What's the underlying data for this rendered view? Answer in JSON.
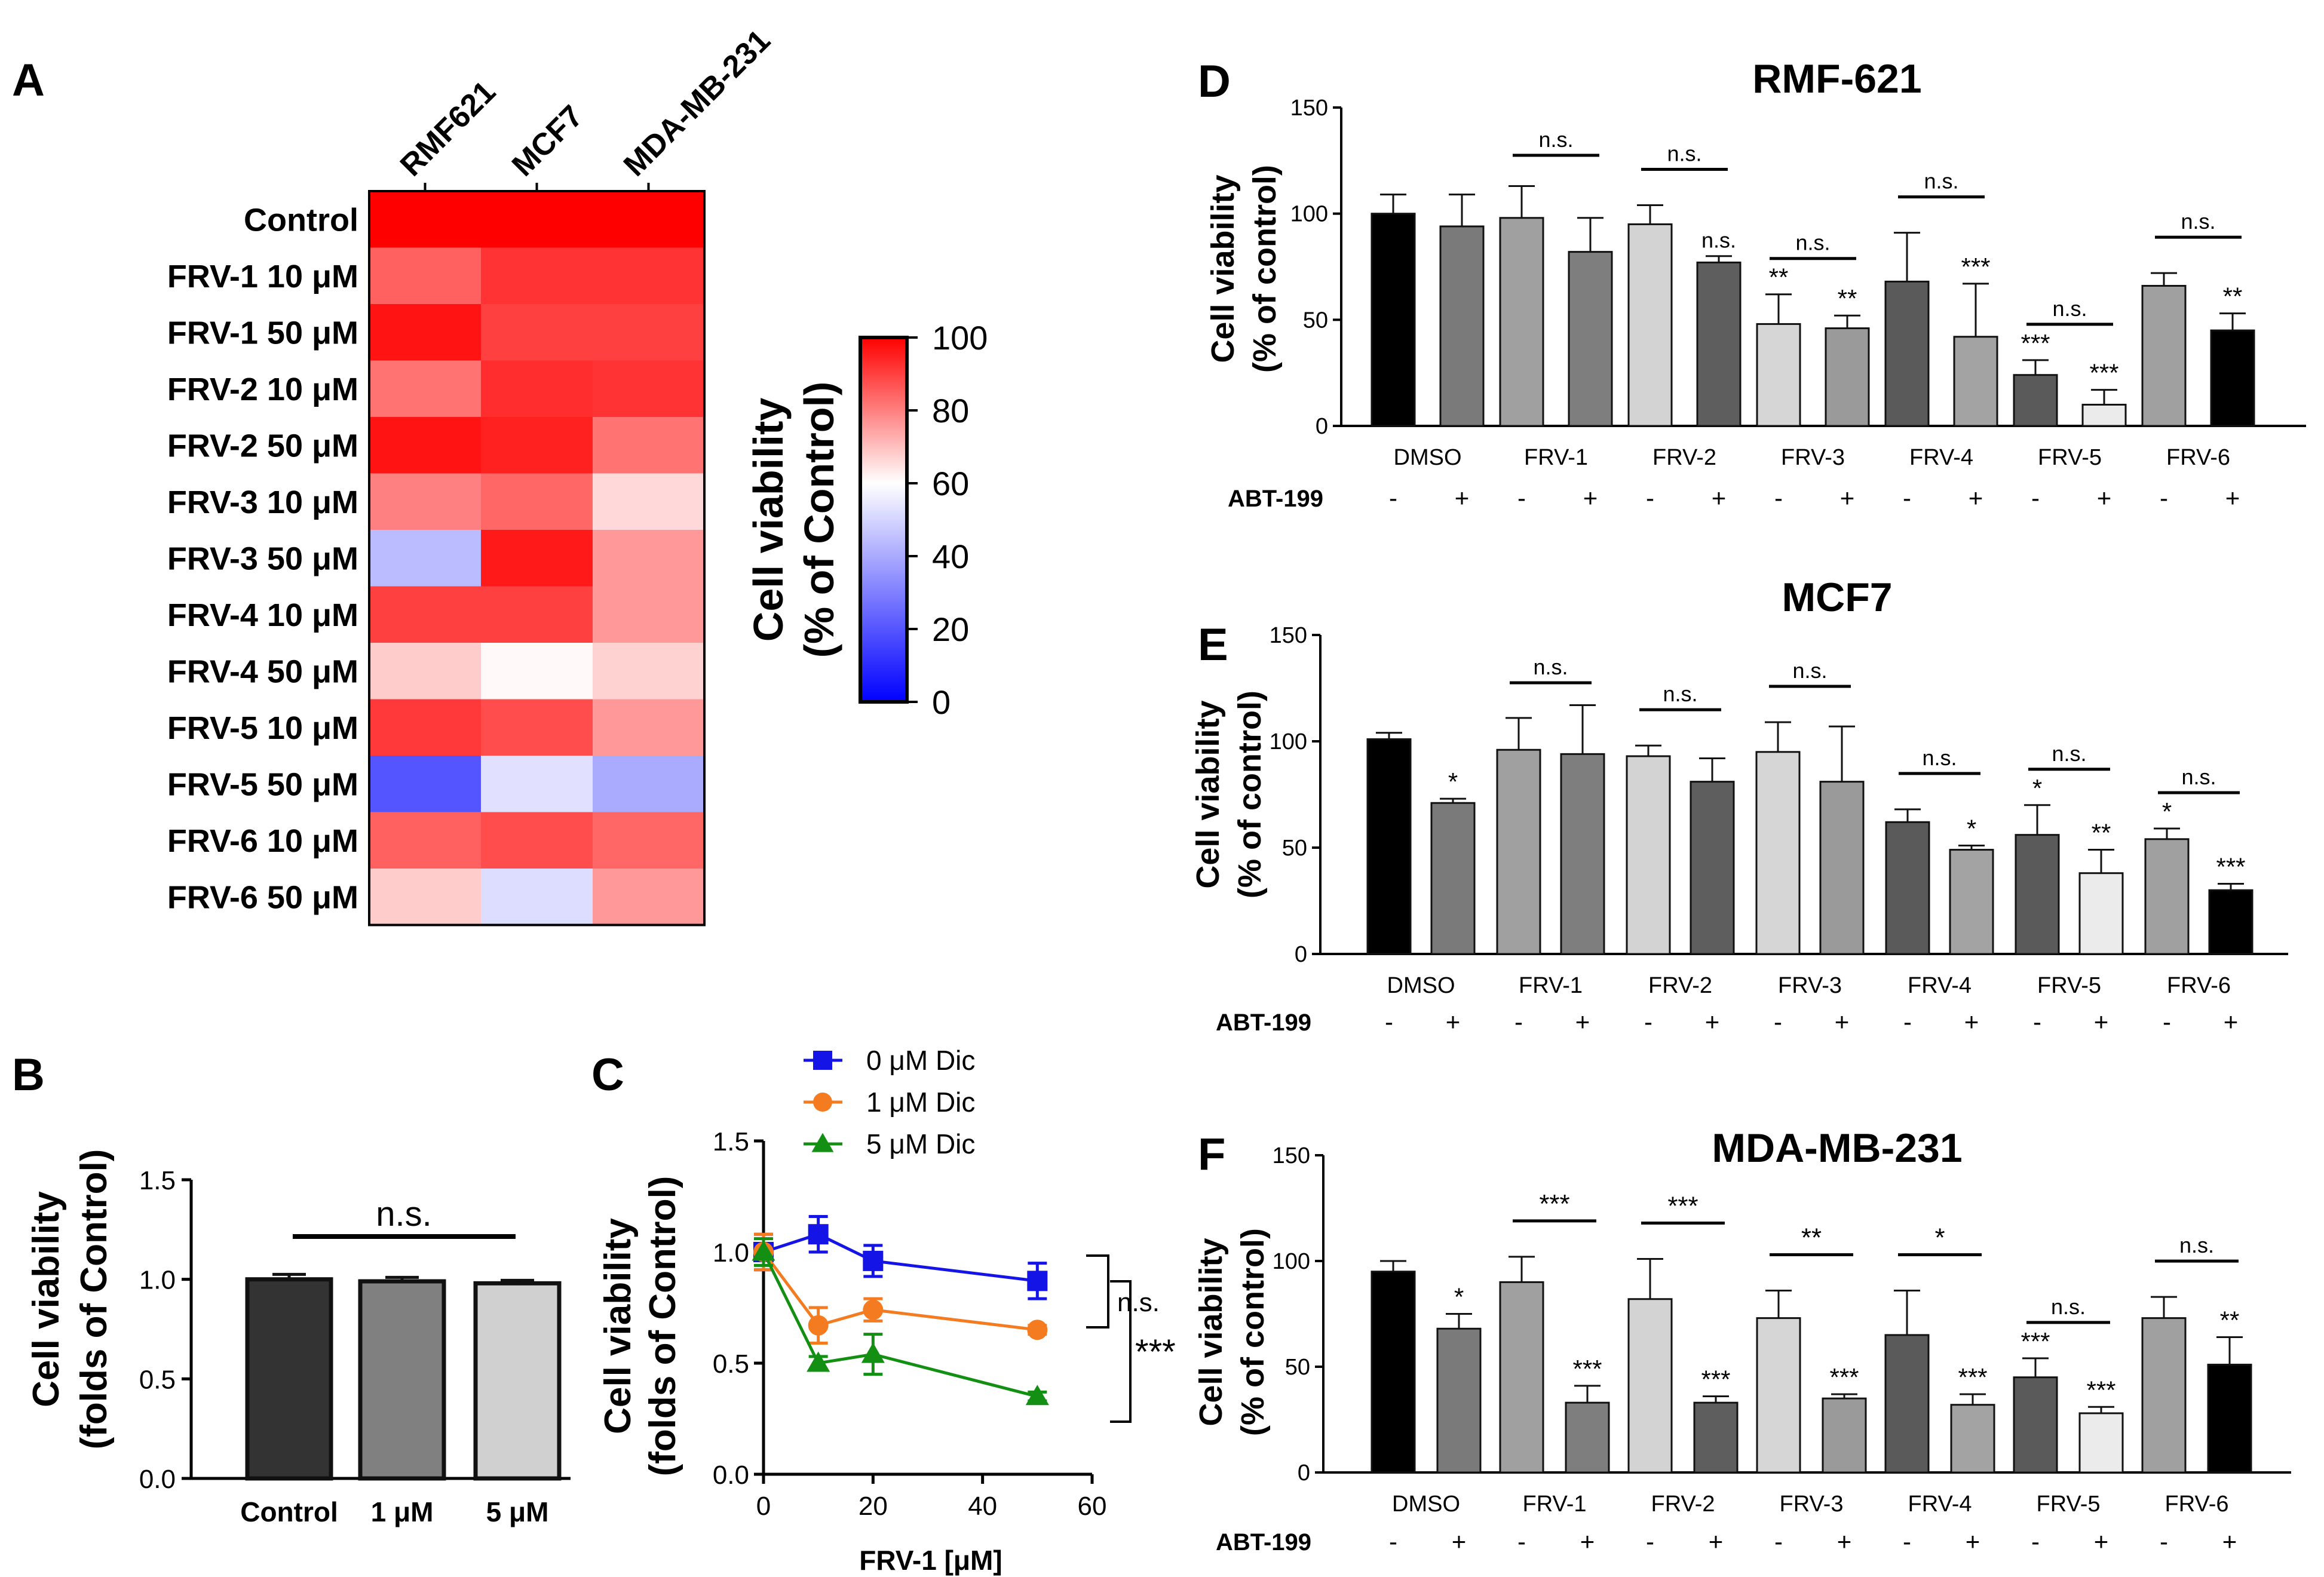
{
  "chart_data": [
    {
      "panel": "A",
      "type": "heatmap",
      "columns": [
        "RMF621",
        "MCF7",
        "MDA-MB-231"
      ],
      "rows": [
        "Control",
        "FRV-1 10 μM",
        "FRV-1 50 μM",
        "FRV-2 10 μM",
        "FRV-2 50 μM",
        "FRV-3 10 μM",
        "FRV-3 50 μM",
        "FRV-4 10 μM",
        "FRV-4 50 μM",
        "FRV-5 10 μM",
        "FRV-5 50 μM",
        "FRV-6 10 μM",
        "FRV-6 50 μM"
      ],
      "values": [
        [
          100,
          100,
          100
        ],
        [
          85,
          92,
          92
        ],
        [
          97,
          90,
          90
        ],
        [
          82,
          93,
          92
        ],
        [
          97,
          95,
          82
        ],
        [
          80,
          84,
          66
        ],
        [
          44,
          96,
          76
        ],
        [
          90,
          90,
          76
        ],
        [
          68,
          61,
          67
        ],
        [
          91,
          88,
          76
        ],
        [
          20,
          53,
          40
        ],
        [
          85,
          88,
          84
        ],
        [
          68,
          52,
          76
        ]
      ],
      "colorbar": {
        "label_line1": "Cell viability",
        "label_line2": "(% of Control)",
        "min": 0,
        "max": 100,
        "ticks": [
          "100",
          "80",
          "60",
          "40",
          "20",
          "0"
        ],
        "low_color": "#0000ff",
        "mid_color": "#ffffff",
        "high_color": "#ff0000"
      }
    },
    {
      "panel": "B",
      "type": "bar",
      "categories": [
        "Control",
        "1 μM",
        "5 μM"
      ],
      "values": [
        1.0,
        0.99,
        0.98
      ],
      "errors": [
        0.025,
        0.02,
        0.015
      ],
      "colors": [
        "#333333",
        "#808080",
        "#d0d0d0"
      ],
      "ylabel_line1": "Cell viability",
      "ylabel_line2": "(folds of Control)",
      "ylim": [
        0,
        1.5
      ],
      "yticks": [
        "0.0",
        "0.5",
        "1.0",
        "1.5"
      ],
      "annotation": "n.s."
    },
    {
      "panel": "C",
      "type": "line",
      "x": [
        0,
        10,
        20,
        50
      ],
      "xlim": [
        0,
        60
      ],
      "xticks": [
        "0",
        "20",
        "40",
        "60"
      ],
      "ylim": [
        0,
        1.5
      ],
      "yticks": [
        "0.0",
        "0.5",
        "1.0",
        "1.5"
      ],
      "xlabel": "FRV-1 [μM]",
      "ylabel_line1": "Cell viability",
      "ylabel_line2": "(folds of Control)",
      "series": [
        {
          "name": "0 μM Dic",
          "values": [
            1.0,
            1.08,
            0.96,
            0.87
          ],
          "errors": [
            0.08,
            0.08,
            0.07,
            0.08
          ],
          "color": "#1414e6",
          "marker": "square"
        },
        {
          "name": "1 μM Dic",
          "values": [
            1.0,
            0.67,
            0.74,
            0.65
          ],
          "errors": [
            0.08,
            0.08,
            0.05,
            0.02
          ],
          "color": "#f57b20",
          "marker": "circle"
        },
        {
          "name": "5 μM Dic",
          "values": [
            1.0,
            0.5,
            0.54,
            0.35
          ],
          "errors": [
            0.06,
            0.03,
            0.09,
            0.02
          ],
          "color": "#138f13",
          "marker": "triangle"
        }
      ],
      "annotations": [
        "n.s.",
        "***"
      ]
    },
    {
      "panel": "D",
      "type": "bar",
      "title": "RMF-621",
      "groups": [
        "DMSO",
        "FRV-1",
        "FRV-2",
        "FRV-3",
        "FRV-4",
        "FRV-5",
        "FRV-6"
      ],
      "abt_label": "ABT-199",
      "abt_signs": [
        "-",
        "+"
      ],
      "values": [
        [
          100,
          94
        ],
        [
          98,
          82
        ],
        [
          95,
          77
        ],
        [
          48,
          46
        ],
        [
          68,
          42
        ],
        [
          24,
          10
        ],
        [
          66,
          45
        ]
      ],
      "errors": [
        [
          9,
          15
        ],
        [
          15,
          16
        ],
        [
          9,
          3
        ],
        [
          14,
          6
        ],
        [
          23,
          25
        ],
        [
          7,
          7
        ],
        [
          6,
          8
        ]
      ],
      "above_labels": [
        [
          "",
          ""
        ],
        [
          "",
          ""
        ],
        [
          "",
          "n.s."
        ],
        [
          "**",
          "**"
        ],
        [
          "",
          "***"
        ],
        [
          "***",
          "***"
        ],
        [
          "",
          "**"
        ]
      ],
      "bracket_labels": [
        "",
        "n.s.",
        "n.s.",
        "n.s.",
        "n.s.",
        "n.s.",
        "n.s."
      ],
      "ylabel_line1": "Cell viability",
      "ylabel_line2": "(% of control)",
      "ylim": [
        0,
        150
      ],
      "yticks": [
        "0",
        "50",
        "100",
        "150"
      ]
    },
    {
      "panel": "E",
      "type": "bar",
      "title": "MCF7",
      "groups": [
        "DMSO",
        "FRV-1",
        "FRV-2",
        "FRV-3",
        "FRV-4",
        "FRV-5",
        "FRV-6"
      ],
      "abt_label": "ABT-199",
      "abt_signs": [
        "-",
        "+"
      ],
      "values": [
        [
          101,
          71
        ],
        [
          96,
          94
        ],
        [
          93,
          81
        ],
        [
          95,
          81
        ],
        [
          62,
          49
        ],
        [
          56,
          38
        ],
        [
          54,
          30
        ]
      ],
      "errors": [
        [
          3,
          2
        ],
        [
          15,
          23
        ],
        [
          5,
          11
        ],
        [
          14,
          26
        ],
        [
          6,
          2
        ],
        [
          14,
          11
        ],
        [
          5,
          3
        ]
      ],
      "above_labels": [
        [
          "",
          "*"
        ],
        [
          "",
          ""
        ],
        [
          "",
          ""
        ],
        [
          "",
          ""
        ],
        [
          "",
          "*"
        ],
        [
          "*",
          "**"
        ],
        [
          "*",
          "***"
        ]
      ],
      "bracket_labels": [
        "",
        "n.s.",
        "n.s.",
        "n.s.",
        "n.s.",
        "n.s.",
        "n.s."
      ],
      "ylabel_line1": "Cell viability",
      "ylabel_line2": "(% of control)",
      "ylim": [
        0,
        150
      ],
      "yticks": [
        "0",
        "50",
        "100",
        "150"
      ]
    },
    {
      "panel": "F",
      "type": "bar",
      "title": "MDA-MB-231",
      "groups": [
        "DMSO",
        "FRV-1",
        "FRV-2",
        "FRV-3",
        "FRV-4",
        "FRV-5",
        "FRV-6"
      ],
      "abt_label": "ABT-199",
      "abt_signs": [
        "-",
        "+"
      ],
      "values": [
        [
          95,
          68
        ],
        [
          90,
          33
        ],
        [
          82,
          33
        ],
        [
          73,
          35
        ],
        [
          65,
          32
        ],
        [
          45,
          28
        ],
        [
          73,
          51
        ]
      ],
      "errors": [
        [
          5,
          7
        ],
        [
          12,
          8
        ],
        [
          19,
          3
        ],
        [
          13,
          2
        ],
        [
          21,
          5
        ],
        [
          9,
          3
        ],
        [
          10,
          13
        ]
      ],
      "above_labels": [
        [
          "",
          "*"
        ],
        [
          "",
          "***"
        ],
        [
          "",
          "***"
        ],
        [
          "",
          "***"
        ],
        [
          "",
          "***"
        ],
        [
          "***",
          "***"
        ],
        [
          "",
          "**"
        ]
      ],
      "bracket_labels": [
        "",
        "***",
        "***",
        "**",
        "*",
        "n.s.",
        "n.s."
      ],
      "ylabel_line1": "Cell viability",
      "ylabel_line2": "(% of control)",
      "ylim": [
        0,
        150
      ],
      "yticks": [
        "0",
        "50",
        "100",
        "150"
      ]
    }
  ]
}
